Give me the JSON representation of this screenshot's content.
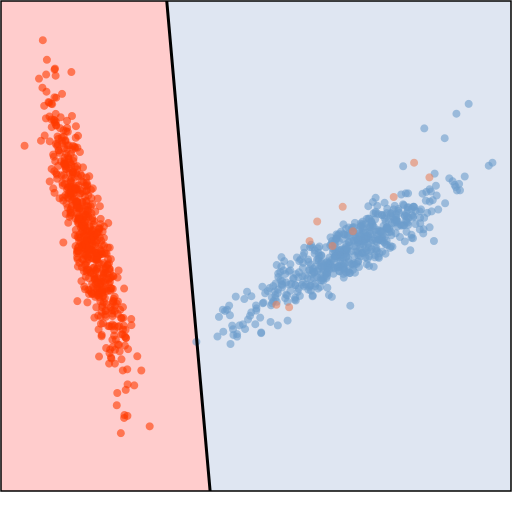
{
  "chart_data": {
    "type": "scatter",
    "title": "",
    "xlabel": "",
    "ylabel": "",
    "xlim": [
      0,
      10
    ],
    "ylim": [
      0,
      10
    ],
    "grid": false,
    "legend": "none",
    "decision_boundary": {
      "points": [
        [
          3.25,
          10
        ],
        [
          4.1,
          0
        ]
      ],
      "color": "#000000"
    },
    "regions": [
      {
        "class": "A",
        "side": "left",
        "color": "#ffcccc"
      },
      {
        "class": "B",
        "side": "right",
        "color": "#dfe6f2"
      }
    ],
    "series": [
      {
        "color": "#ff3a00",
        "n": 560,
        "distribution": {
          "mean": [
            1.7,
            5.2
          ],
          "sd_major": 1.35,
          "sd_minor": 0.18,
          "angle_deg": -76
        },
        "outliers": [
          [
            0.82,
            9.2
          ],
          [
            0.9,
            8.8
          ],
          [
            1.05,
            8.6
          ],
          [
            1.38,
            8.55
          ],
          [
            2.35,
            1.18
          ],
          [
            2.42,
            1.55
          ],
          [
            2.27,
            1.75
          ],
          [
            2.28,
            2.0
          ],
          [
            2.12,
            2.6
          ]
        ]
      },
      {
        "color": "#6d9ccc",
        "n": 520,
        "distribution": {
          "mean": [
            6.8,
            4.9
          ],
          "sd_major": 1.12,
          "sd_minor": 0.25,
          "angle_deg": 33
        },
        "outliers": [
          [
            9.17,
            7.9
          ],
          [
            8.93,
            7.7
          ],
          [
            8.7,
            7.2
          ],
          [
            8.3,
            7.4
          ],
          [
            4.35,
            3.7
          ],
          [
            4.55,
            3.3
          ],
          [
            4.63,
            3.15
          ],
          [
            4.5,
            3.0
          ],
          [
            7.95,
            5.5
          ]
        ]
      },
      {
        "color": "#e8845f",
        "n": 0,
        "points": [
          [
            6.7,
            5.8
          ],
          [
            6.2,
            5.5
          ],
          [
            6.05,
            5.1
          ],
          [
            8.4,
            6.4
          ],
          [
            8.1,
            6.7
          ],
          [
            5.4,
            3.8
          ],
          [
            5.65,
            3.75
          ],
          [
            6.5,
            5.0
          ],
          [
            6.9,
            5.3
          ],
          [
            7.7,
            6.0
          ]
        ]
      }
    ]
  }
}
